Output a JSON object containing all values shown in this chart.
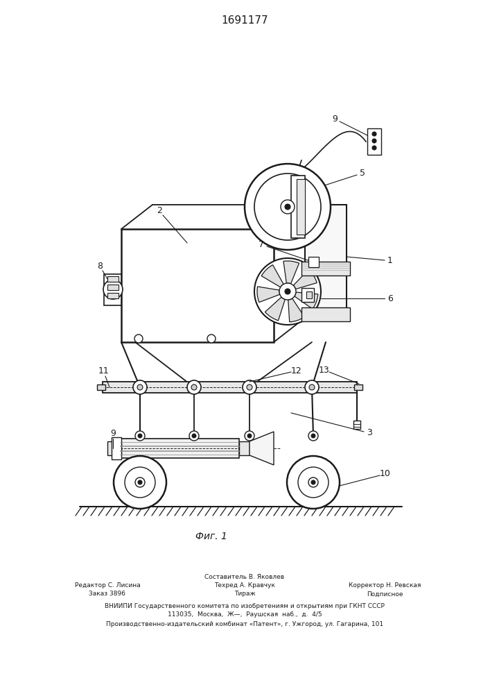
{
  "patent_number": "1691177",
  "figure_label": "Фиг. 1",
  "background_color": "#ffffff",
  "line_color": "#1a1a1a",
  "fig_width": 7.07,
  "fig_height": 10.0,
  "footer_col1_line1": "Редактор С. Лисина",
  "footer_col1_line2": "Заказ 3896",
  "footer_col2_line1": "Составитель В. Яковлев",
  "footer_col2_line2": "Техред А. Кравчук",
  "footer_col2_line3": "Тираж",
  "footer_col3_line1": "Корректор Н. Ревская",
  "footer_col3_line2": "Подписное",
  "footer_main1": "ВНИИПИ Государственного комитета по изобретениям и открытиям при ГКНТ СССР",
  "footer_main2": "113035,  Москва,  Ж—̵,  Раушская  наб.,  д.  4/5",
  "footer_main3": "Производственно-издательский комбинат «Патент», г. Ужгород, ул. Гагарина, 101"
}
